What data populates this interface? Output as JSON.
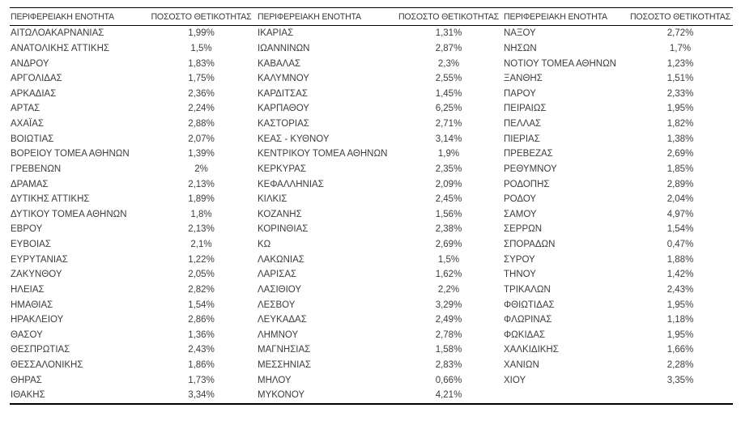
{
  "header": {
    "region_label": "ΠΕΡΙΦΕΡΕΙΑΚΗ ΕΝΟΤΗΤΑ",
    "positivity_label": "ΠΟΣΟΣΤΟ ΘΕΤΙΚΟΤΗΤΑΣ"
  },
  "columns": [
    {
      "rows": [
        {
          "region": "ΑΙΤΩΛΟΑΚΑΡΝΑΝΙΑΣ",
          "value": "1,99%"
        },
        {
          "region": "ΑΝΑΤΟΛΙΚΗΣ ΑΤΤΙΚΗΣ",
          "value": "1,5%"
        },
        {
          "region": "ΑΝΔΡΟΥ",
          "value": "1,83%"
        },
        {
          "region": "ΑΡΓΟΛΙΔΑΣ",
          "value": "1,75%"
        },
        {
          "region": "ΑΡΚΑΔΙΑΣ",
          "value": "2,36%"
        },
        {
          "region": "ΑΡΤΑΣ",
          "value": "2,24%"
        },
        {
          "region": "ΑΧΑΪΑΣ",
          "value": "2,88%"
        },
        {
          "region": "ΒΟΙΩΤΙΑΣ",
          "value": "2,07%"
        },
        {
          "region": "ΒΟΡΕΙΟΥ ΤΟΜΕΑ ΑΘΗΝΩΝ",
          "value": "1,39%"
        },
        {
          "region": "ΓΡΕΒΕΝΩΝ",
          "value": "2%"
        },
        {
          "region": "ΔΡΑΜΑΣ",
          "value": "2,13%"
        },
        {
          "region": "ΔΥΤΙΚΗΣ ΑΤΤΙΚΗΣ",
          "value": "1,89%"
        },
        {
          "region": "ΔΥΤΙΚΟΥ ΤΟΜΕΑ ΑΘΗΝΩΝ",
          "value": "1,8%"
        },
        {
          "region": "ΕΒΡΟΥ",
          "value": "2,13%"
        },
        {
          "region": "ΕΥΒΟΙΑΣ",
          "value": "2,1%"
        },
        {
          "region": "ΕΥΡΥΤΑΝΙΑΣ",
          "value": "1,22%"
        },
        {
          "region": "ΖΑΚΥΝΘΟΥ",
          "value": "2,05%"
        },
        {
          "region": "ΗΛΕΙΑΣ",
          "value": "2,82%"
        },
        {
          "region": "ΗΜΑΘΙΑΣ",
          "value": "1,54%"
        },
        {
          "region": "ΗΡΑΚΛΕΙΟΥ",
          "value": "2,86%"
        },
        {
          "region": "ΘΑΣΟΥ",
          "value": "1,36%"
        },
        {
          "region": "ΘΕΣΠΡΩΤΙΑΣ",
          "value": "2,43%"
        },
        {
          "region": "ΘΕΣΣΑΛΟΝΙΚΗΣ",
          "value": "1,86%"
        },
        {
          "region": "ΘΗΡΑΣ",
          "value": "1,73%"
        },
        {
          "region": "ΙΘΑΚΗΣ",
          "value": "3,34%"
        }
      ]
    },
    {
      "rows": [
        {
          "region": "ΙΚΑΡΙΑΣ",
          "value": "1,31%"
        },
        {
          "region": "ΙΩΑΝΝΙΝΩΝ",
          "value": "2,87%"
        },
        {
          "region": "ΚΑΒΑΛΑΣ",
          "value": "2,3%"
        },
        {
          "region": "ΚΑΛΥΜΝΟΥ",
          "value": "2,55%"
        },
        {
          "region": "ΚΑΡΔΙΤΣΑΣ",
          "value": "1,45%"
        },
        {
          "region": "ΚΑΡΠΑΘΟΥ",
          "value": "6,25%"
        },
        {
          "region": "ΚΑΣΤΟΡΙΑΣ",
          "value": "2,71%"
        },
        {
          "region": "ΚΕΑΣ - ΚΥΘΝΟΥ",
          "value": "3,14%"
        },
        {
          "region": "ΚΕΝΤΡΙΚΟΥ ΤΟΜΕΑ ΑΘΗΝΩΝ",
          "value": "1,9%"
        },
        {
          "region": "ΚΕΡΚΥΡΑΣ",
          "value": "2,35%"
        },
        {
          "region": "ΚΕΦΑΛΛΗΝΙΑΣ",
          "value": "2,09%"
        },
        {
          "region": "ΚΙΛΚΙΣ",
          "value": "2,45%"
        },
        {
          "region": "ΚΟΖΑΝΗΣ",
          "value": "1,56%"
        },
        {
          "region": "ΚΟΡΙΝΘΙΑΣ",
          "value": "2,38%"
        },
        {
          "region": "ΚΩ",
          "value": "2,69%"
        },
        {
          "region": "ΛΑΚΩΝΙΑΣ",
          "value": "1,5%"
        },
        {
          "region": "ΛΑΡΙΣΑΣ",
          "value": "1,62%"
        },
        {
          "region": "ΛΑΣΙΘΙΟΥ",
          "value": "2,2%"
        },
        {
          "region": "ΛΕΣΒΟΥ",
          "value": "3,29%"
        },
        {
          "region": "ΛΕΥΚΑΔΑΣ",
          "value": "2,49%"
        },
        {
          "region": "ΛΗΜΝΟΥ",
          "value": "2,78%"
        },
        {
          "region": "ΜΑΓΝΗΣΙΑΣ",
          "value": "1,58%"
        },
        {
          "region": "ΜΕΣΣΗΝΙΑΣ",
          "value": "2,83%"
        },
        {
          "region": "ΜΗΛΟΥ",
          "value": "0,66%"
        },
        {
          "region": "ΜΥΚΟΝΟΥ",
          "value": "4,21%"
        }
      ]
    },
    {
      "rows": [
        {
          "region": "ΝΑΞΟΥ",
          "value": "2,72%"
        },
        {
          "region": "ΝΗΣΩΝ",
          "value": "1,7%"
        },
        {
          "region": "ΝΟΤΙΟΥ ΤΟΜΕΑ ΑΘΗΝΩΝ",
          "value": "1,23%"
        },
        {
          "region": "ΞΑΝΘΗΣ",
          "value": "1,51%"
        },
        {
          "region": "ΠΑΡΟΥ",
          "value": "2,33%"
        },
        {
          "region": "ΠΕΙΡΑΙΩΣ",
          "value": "1,95%"
        },
        {
          "region": "ΠΕΛΛΑΣ",
          "value": "1,82%"
        },
        {
          "region": "ΠΙΕΡΙΑΣ",
          "value": "1,38%"
        },
        {
          "region": "ΠΡΕΒΕΖΑΣ",
          "value": "2,69%"
        },
        {
          "region": "ΡΕΘΥΜΝΟΥ",
          "value": "1,85%"
        },
        {
          "region": "ΡΟΔΟΠΗΣ",
          "value": "2,89%"
        },
        {
          "region": "ΡΟΔΟΥ",
          "value": "2,04%"
        },
        {
          "region": "ΣΑΜΟΥ",
          "value": "4,97%"
        },
        {
          "region": "ΣΕΡΡΩΝ",
          "value": "1,54%"
        },
        {
          "region": "ΣΠΟΡΑΔΩΝ",
          "value": "0,47%"
        },
        {
          "region": "ΣΥΡΟΥ",
          "value": "1,88%"
        },
        {
          "region": "ΤΗΝΟΥ",
          "value": "1,42%"
        },
        {
          "region": "ΤΡΙΚΑΛΩΝ",
          "value": "2,43%"
        },
        {
          "region": "ΦΘΙΩΤΙΔΑΣ",
          "value": "1,95%"
        },
        {
          "region": "ΦΛΩΡΙΝΑΣ",
          "value": "1,18%"
        },
        {
          "region": "ΦΩΚΙΔΑΣ",
          "value": "1,95%"
        },
        {
          "region": "ΧΑΛΚΙΔΙΚΗΣ",
          "value": "1,66%"
        },
        {
          "region": "ΧΑΝΙΩΝ",
          "value": "2,28%"
        },
        {
          "region": "ΧΙΟΥ",
          "value": "3,35%"
        },
        {
          "region": "",
          "value": ""
        }
      ]
    }
  ]
}
